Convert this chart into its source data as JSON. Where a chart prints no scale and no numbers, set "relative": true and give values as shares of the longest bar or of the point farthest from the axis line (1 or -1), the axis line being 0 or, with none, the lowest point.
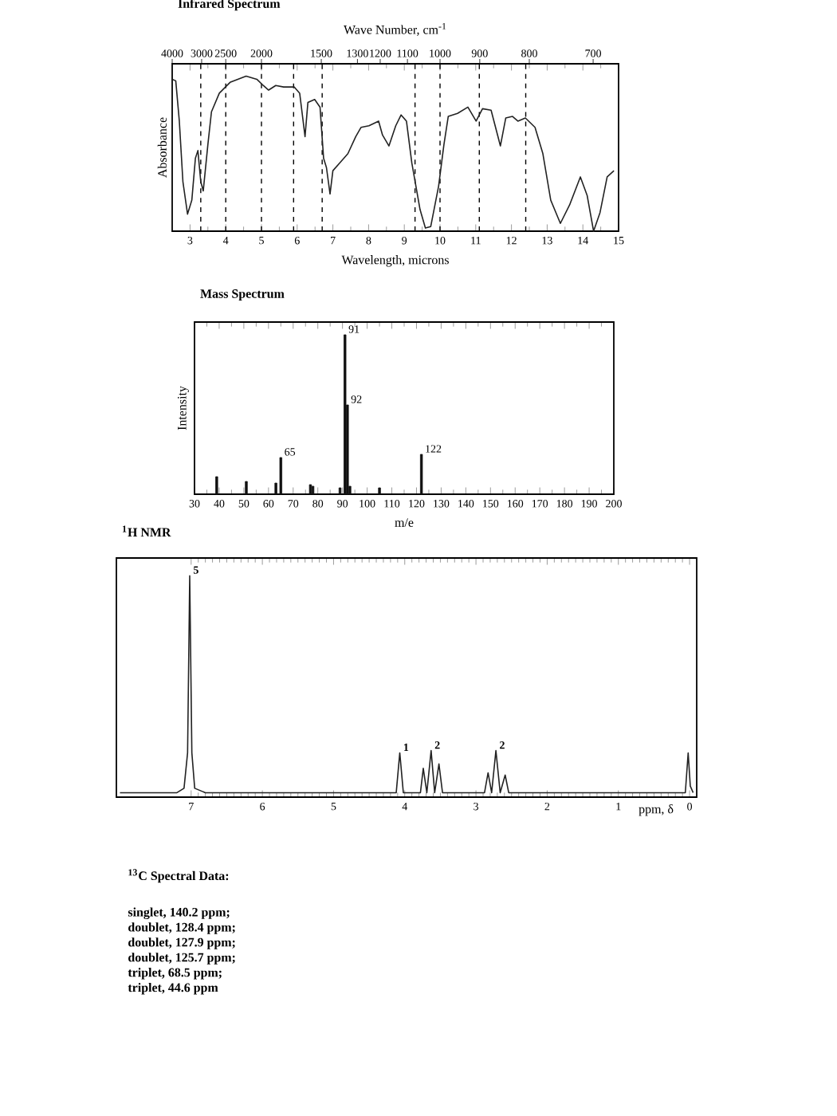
{
  "chart_data": [
    {
      "type": "line",
      "title": "Infrared Spectrum",
      "xlabel": "Wavelength, microns",
      "ylabel": "Absorbance",
      "x2label": "Wave Number, cm$^{-1}$",
      "relative": true,
      "tick_labels": "x",
      "color": "#222222",
      "xlim": [
        2.5,
        15
      ],
      "xticks": [
        3,
        4,
        5,
        6,
        7,
        8,
        9,
        10,
        11,
        12,
        13,
        14,
        15
      ],
      "annotations": [
        "4000",
        "3000",
        "2500",
        "2000",
        "1500",
        "1300",
        "1200",
        "1100",
        "1000",
        "900",
        "800",
        "700"
      ],
      "ref_lines": [
        {
          "axis": "x",
          "value": 3.3,
          "line_style": "dashed"
        },
        {
          "axis": "x",
          "value": 4,
          "line_style": "dashed"
        },
        {
          "axis": "x",
          "value": 5,
          "line_style": "dashed"
        },
        {
          "axis": "x",
          "value": 5.9,
          "line_style": "dashed"
        },
        {
          "axis": "x",
          "value": 6.7,
          "line_style": "dashed"
        },
        {
          "axis": "x",
          "value": 9.3,
          "line_style": "dashed"
        },
        {
          "axis": "x",
          "value": 10,
          "line_style": "dashed"
        },
        {
          "axis": "x",
          "value": 11.1,
          "line_style": "dashed"
        },
        {
          "axis": "x",
          "value": 12.4,
          "line_style": "dashed"
        }
      ],
      "x": [
        2.5,
        2.6,
        2.7,
        2.8,
        2.93,
        3.05,
        3.15,
        3.22,
        3.3,
        3.37,
        3.5,
        3.6,
        3.82,
        4.12,
        4.57,
        4.87,
        5.05,
        5.2,
        5.4,
        5.62,
        5.92,
        6.07,
        6.22,
        6.3,
        6.49,
        6.64,
        6.74,
        6.82,
        6.92,
        7.0,
        7.19,
        7.42,
        7.64,
        7.79,
        8.01,
        8.28,
        8.39,
        8.57,
        8.76,
        8.91,
        9.06,
        9.21,
        9.44,
        9.59,
        9.74,
        9.96,
        10.11,
        10.23,
        10.49,
        10.78,
        11.01,
        11.19,
        11.43,
        11.69,
        11.84,
        12.03,
        12.18,
        12.39,
        12.66,
        12.88,
        13.1,
        13.37,
        13.63,
        13.93,
        14.12,
        14.3,
        14.48,
        14.68,
        14.87
      ],
      "values": [
        0.98,
        0.97,
        0.71,
        0.32,
        0.11,
        0.2,
        0.47,
        0.52,
        0.32,
        0.26,
        0.56,
        0.77,
        0.89,
        0.96,
        1.0,
        0.98,
        0.94,
        0.91,
        0.94,
        0.93,
        0.93,
        0.89,
        0.61,
        0.83,
        0.85,
        0.8,
        0.47,
        0.41,
        0.24,
        0.39,
        0.44,
        0.5,
        0.61,
        0.67,
        0.68,
        0.71,
        0.62,
        0.55,
        0.68,
        0.75,
        0.71,
        0.44,
        0.14,
        0.02,
        0.03,
        0.29,
        0.56,
        0.74,
        0.76,
        0.8,
        0.71,
        0.79,
        0.78,
        0.55,
        0.73,
        0.74,
        0.71,
        0.73,
        0.67,
        0.5,
        0.2,
        0.05,
        0.17,
        0.35,
        0.23,
        0.0,
        0.12,
        0.35,
        0.39
      ]
    },
    {
      "type": "bar",
      "title": "Mass Spectrum",
      "xlabel": "m/e",
      "ylabel": "Intensity",
      "relative": true,
      "tick_labels": "x",
      "color": "#111111",
      "xlim": [
        30,
        200
      ],
      "xticks": [
        30,
        40,
        50,
        60,
        70,
        80,
        90,
        100,
        110,
        120,
        130,
        140,
        150,
        160,
        170,
        180,
        190,
        200
      ],
      "x": [
        39,
        51,
        63,
        65,
        77,
        78,
        89,
        91,
        92,
        93,
        105,
        122
      ],
      "values": [
        0.11,
        0.08,
        0.07,
        0.23,
        0.06,
        0.05,
        0.04,
        1.0,
        0.56,
        0.05,
        0.04,
        0.25
      ],
      "annotations": [
        {
          "text": "65",
          "x": 65,
          "y": 0.23
        },
        {
          "text": "91",
          "x": 91,
          "y": 1.0
        },
        {
          "text": "92",
          "x": 92,
          "y": 0.56
        },
        {
          "text": "122",
          "x": 122,
          "y": 0.25
        }
      ]
    },
    {
      "type": "line",
      "title": "$^{1}$H NMR",
      "xlabel": "ppm, δ",
      "relative": true,
      "tick_labels": "x",
      "color": "#222222",
      "xlim": [
        8.05,
        -0.1
      ],
      "xticks": [
        7,
        6,
        5,
        4,
        3,
        2,
        1,
        0
      ],
      "x": [
        8.0,
        7.2,
        7.1,
        7.05,
        7.02,
        6.99,
        6.95,
        6.8,
        4.12,
        4.07,
        4.02,
        3.78,
        3.74,
        3.69,
        3.63,
        3.58,
        3.52,
        3.47,
        2.88,
        2.83,
        2.78,
        2.72,
        2.66,
        2.59,
        2.54,
        0.06,
        0.02,
        -0.01,
        -0.05
      ],
      "values": [
        0.02,
        0.02,
        0.04,
        0.2,
        1.0,
        0.2,
        0.04,
        0.02,
        0.02,
        0.2,
        0.02,
        0.02,
        0.13,
        0.02,
        0.21,
        0.02,
        0.15,
        0.02,
        0.02,
        0.11,
        0.02,
        0.21,
        0.02,
        0.1,
        0.02,
        0.02,
        0.2,
        0.05,
        0.02
      ],
      "annotations": [
        {
          "text": "5",
          "x": 7.02,
          "y": 1.0
        },
        {
          "text": "1",
          "x": 4.07,
          "y": 0.2
        },
        {
          "text": "2",
          "x": 3.63,
          "y": 0.21
        },
        {
          "text": "2",
          "x": 2.72,
          "y": 0.21
        }
      ]
    },
    {
      "type": "other",
      "title": "$^{13}$C Spectral Data:",
      "annotations": [
        "singlet, 140.2 ppm;",
        "doublet, 128.4 ppm;",
        "doublet, 127.9 ppm;",
        "doublet, 125.7 ppm;",
        "triplet, 68.5 ppm;",
        "triplet, 44.6 ppm"
      ]
    }
  ]
}
